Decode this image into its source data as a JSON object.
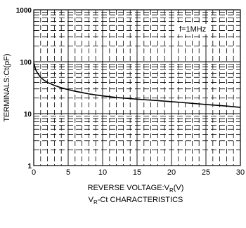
{
  "chart_data": {
    "type": "line",
    "title": "V<sub>R</sub>-Ct CHARACTERISTICS",
    "title_parts": {
      "prefix": "V",
      "sub": "R",
      "suffix": "-Ct CHARACTERISTICS"
    },
    "xlabel_parts": {
      "prefix": "REVERSE VOLTAGE:V",
      "sub": "R",
      "suffix": "(V)"
    },
    "ylabel": "TERMINALS:Ct(pF)",
    "annotation": "f=1MHz",
    "xlim": [
      0,
      30
    ],
    "ylim": [
      1,
      1000
    ],
    "yscale": "log",
    "grid": true,
    "x_ticks": [
      "0",
      "5",
      "10",
      "15",
      "20",
      "25",
      "30"
    ],
    "y_ticks": [
      "1",
      "10",
      "100",
      "1000"
    ],
    "series": [
      {
        "x": [
          0,
          0.25,
          0.5,
          1,
          1.5,
          2,
          3,
          4,
          5,
          6,
          7,
          8,
          10,
          12,
          15,
          18,
          20,
          22,
          25,
          28,
          30
        ],
        "y": [
          95,
          72,
          62,
          50,
          44,
          40,
          35,
          31.5,
          29,
          27,
          25.5,
          24,
          22,
          20.5,
          19,
          17.8,
          17,
          16.2,
          15,
          14,
          13.2
        ]
      }
    ]
  }
}
